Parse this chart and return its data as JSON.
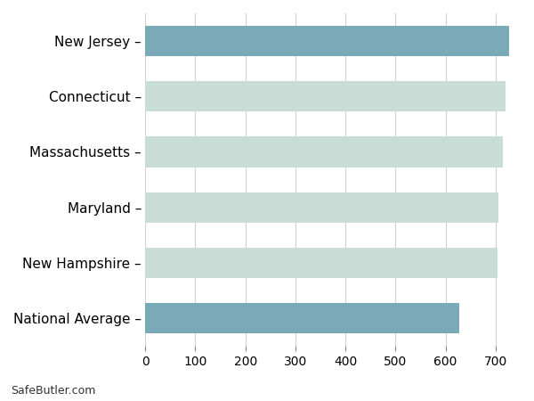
{
  "categories": [
    "New Jersey",
    "Connecticut",
    "Massachusetts",
    "Maryland",
    "New Hampshire",
    "National Average"
  ],
  "values": [
    727,
    720,
    715,
    706,
    703,
    627
  ],
  "highlight_color": "#7aaab8",
  "normal_color": "#c8ddd5",
  "background_color": "#ffffff",
  "grid_color": "#d0d0d0",
  "xlim": [
    0,
    750
  ],
  "xticks": [
    0,
    100,
    200,
    300,
    400,
    500,
    600,
    700
  ],
  "highlight_indices": [
    0,
    5
  ],
  "footer_text": "SafeButler.com",
  "tick_fontsize": 10,
  "label_fontsize": 11,
  "bar_height": 0.55
}
